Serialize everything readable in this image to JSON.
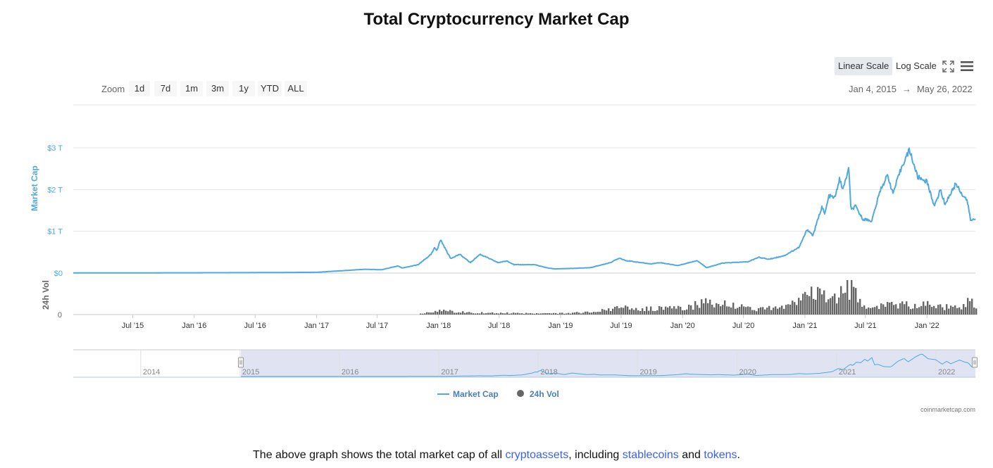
{
  "page": {
    "title": "Total Cryptocurrency Market Cap",
    "caption": {
      "before": "The above graph shows the total market cap of all ",
      "link1": "cryptoassets",
      "middle1": ", including ",
      "link2": "stablecoins",
      "middle2": " and ",
      "link3": "tokens",
      "after": "."
    }
  },
  "toolbar": {
    "linear_scale": "Linear Scale",
    "log_scale": "Log Scale",
    "zoom_label": "Zoom",
    "zoom_buttons": [
      "1d",
      "7d",
      "1m",
      "3m",
      "1y",
      "YTD",
      "ALL"
    ],
    "range_from": "Jan 4, 2015",
    "range_arrow": "→",
    "range_to": "May 26, 2022"
  },
  "colors": {
    "market_cap": "#4fa9e0",
    "volume": "#666666",
    "navigator_mask": "#dfe3f2",
    "grid": "#e6e6e6"
  },
  "chart_data": {
    "type": "line",
    "title": "Total Cryptocurrency Market Cap",
    "credits": "coinmarketcap.com",
    "x_range": [
      "2015-01-04",
      "2022-05-26"
    ],
    "x_ticks": [
      "Jul '15",
      "Jan '16",
      "Jul '16",
      "Jan '17",
      "Jul '17",
      "Jan '18",
      "Jul '18",
      "Jan '19",
      "Jul '19",
      "Jan '20",
      "Jul '20",
      "Jan '21",
      "Jul '21",
      "Jan '22"
    ],
    "y_axis": {
      "label": "Market Cap",
      "unit": "trillion USD",
      "ylim": [
        0,
        3
      ],
      "ticks": [
        "$0",
        "$1 T",
        "$2 T",
        "$3 T"
      ]
    },
    "volume_axis": {
      "label": "24h Vol",
      "ticks": [
        "0"
      ]
    },
    "legend": [
      "Market Cap",
      "24h Vol"
    ],
    "navigator_years": [
      "2014",
      "2015",
      "2016",
      "2017",
      "2018",
      "2019",
      "2020",
      "2021",
      "2022"
    ],
    "series": [
      {
        "name": "Market Cap",
        "unit": "trillion USD",
        "points": [
          [
            "2015-01-04",
            0.005
          ],
          [
            "2015-07-01",
            0.005
          ],
          [
            "2016-01-01",
            0.007
          ],
          [
            "2016-07-01",
            0.011
          ],
          [
            "2017-01-01",
            0.018
          ],
          [
            "2017-05-25",
            0.09
          ],
          [
            "2017-07-15",
            0.08
          ],
          [
            "2017-09-01",
            0.17
          ],
          [
            "2017-09-15",
            0.12
          ],
          [
            "2017-11-01",
            0.2
          ],
          [
            "2017-12-10",
            0.45
          ],
          [
            "2017-12-20",
            0.6
          ],
          [
            "2017-12-27",
            0.55
          ],
          [
            "2018-01-07",
            0.8
          ],
          [
            "2018-01-20",
            0.6
          ],
          [
            "2018-02-06",
            0.35
          ],
          [
            "2018-03-05",
            0.45
          ],
          [
            "2018-04-06",
            0.25
          ],
          [
            "2018-05-05",
            0.45
          ],
          [
            "2018-06-28",
            0.25
          ],
          [
            "2018-07-25",
            0.29
          ],
          [
            "2018-08-15",
            0.2
          ],
          [
            "2018-10-15",
            0.2
          ],
          [
            "2018-11-25",
            0.12
          ],
          [
            "2018-12-15",
            0.1
          ],
          [
            "2019-02-01",
            0.11
          ],
          [
            "2019-04-01",
            0.13
          ],
          [
            "2019-05-30",
            0.25
          ],
          [
            "2019-06-26",
            0.36
          ],
          [
            "2019-07-15",
            0.3
          ],
          [
            "2019-09-26",
            0.22
          ],
          [
            "2019-10-26",
            0.25
          ],
          [
            "2019-12-18",
            0.18
          ],
          [
            "2020-02-13",
            0.3
          ],
          [
            "2020-03-13",
            0.13
          ],
          [
            "2020-05-01",
            0.24
          ],
          [
            "2020-07-15",
            0.27
          ],
          [
            "2020-08-15",
            0.38
          ],
          [
            "2020-09-15",
            0.33
          ],
          [
            "2020-11-01",
            0.42
          ],
          [
            "2020-12-15",
            0.62
          ],
          [
            "2021-01-08",
            1.05
          ],
          [
            "2021-01-25",
            0.9
          ],
          [
            "2021-02-21",
            1.6
          ],
          [
            "2021-03-01",
            1.4
          ],
          [
            "2021-03-14",
            1.85
          ],
          [
            "2021-04-01",
            1.8
          ],
          [
            "2021-04-14",
            2.25
          ],
          [
            "2021-04-25",
            2.0
          ],
          [
            "2021-05-12",
            2.5
          ],
          [
            "2021-05-19",
            1.5
          ],
          [
            "2021-06-01",
            1.6
          ],
          [
            "2021-06-22",
            1.3
          ],
          [
            "2021-07-20",
            1.25
          ],
          [
            "2021-08-15",
            2.0
          ],
          [
            "2021-09-06",
            2.35
          ],
          [
            "2021-09-21",
            1.9
          ],
          [
            "2021-10-20",
            2.6
          ],
          [
            "2021-11-10",
            2.95
          ],
          [
            "2021-12-04",
            2.3
          ],
          [
            "2021-12-31",
            2.2
          ],
          [
            "2022-01-24",
            1.6
          ],
          [
            "2022-02-10",
            2.0
          ],
          [
            "2022-02-24",
            1.65
          ],
          [
            "2022-03-29",
            2.15
          ],
          [
            "2022-04-15",
            1.9
          ],
          [
            "2022-05-01",
            1.75
          ],
          [
            "2022-05-12",
            1.25
          ],
          [
            "2022-05-26",
            1.3
          ]
        ]
      },
      {
        "name": "24h Vol",
        "unit": "relative to peak",
        "points": [
          [
            "2015-01-04",
            0.0
          ],
          [
            "2017-10-25",
            0.0
          ],
          [
            "2017-11-15",
            0.06
          ],
          [
            "2018-01-07",
            0.15
          ],
          [
            "2018-04-01",
            0.07
          ],
          [
            "2018-08-01",
            0.05
          ],
          [
            "2018-12-01",
            0.04
          ],
          [
            "2019-04-01",
            0.08
          ],
          [
            "2019-06-26",
            0.24
          ],
          [
            "2019-09-01",
            0.2
          ],
          [
            "2020-01-01",
            0.22
          ],
          [
            "2020-03-13",
            0.45
          ],
          [
            "2020-06-01",
            0.3
          ],
          [
            "2020-08-15",
            0.2
          ],
          [
            "2020-10-15",
            0.22
          ],
          [
            "2020-12-15",
            0.42
          ],
          [
            "2021-01-11",
            0.7
          ],
          [
            "2021-02-22",
            0.65
          ],
          [
            "2021-03-15",
            0.42
          ],
          [
            "2021-04-18",
            0.7
          ],
          [
            "2021-05-19",
            1.0
          ],
          [
            "2021-06-15",
            0.42
          ],
          [
            "2021-08-01",
            0.22
          ],
          [
            "2021-09-07",
            0.38
          ],
          [
            "2021-11-10",
            0.32
          ],
          [
            "2022-01-22",
            0.38
          ],
          [
            "2022-03-01",
            0.25
          ],
          [
            "2022-04-15",
            0.22
          ],
          [
            "2022-05-12",
            0.55
          ],
          [
            "2022-05-26",
            0.25
          ]
        ]
      }
    ]
  }
}
